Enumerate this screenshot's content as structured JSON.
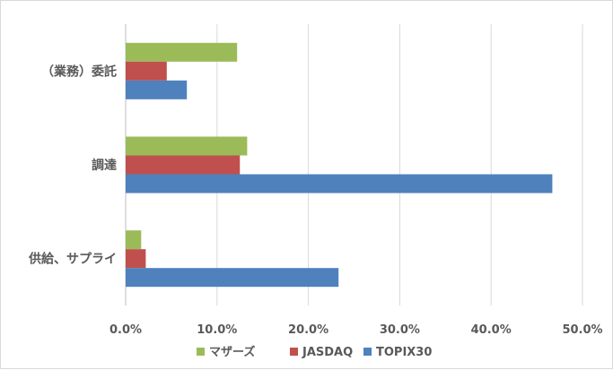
{
  "chart_data": {
    "type": "bar",
    "orientation": "horizontal",
    "categories": [
      "（業務）委託",
      "調達",
      "供給、サプライ"
    ],
    "series": [
      {
        "name": "マザーズ",
        "color": "#9bbb59",
        "values": [
          12.2,
          13.3,
          1.7
        ]
      },
      {
        "name": "JASDAQ",
        "color": "#c0504d",
        "values": [
          4.5,
          12.5,
          2.2
        ]
      },
      {
        "name": "TOPIX30",
        "color": "#4f81bd",
        "values": [
          6.7,
          46.7,
          23.3
        ]
      }
    ],
    "x_ticks": [
      "0.0%",
      "10.0%",
      "20.0%",
      "30.0%",
      "40.0%",
      "50.0%"
    ],
    "xlim": [
      0,
      50
    ],
    "grid": true,
    "legend_position": "bottom"
  }
}
